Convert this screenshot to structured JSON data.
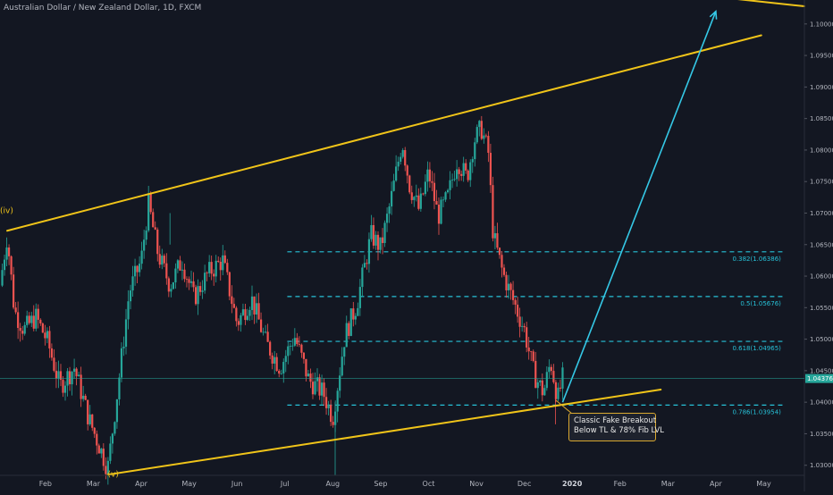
{
  "header": {
    "title": "Australian Dollar / New Zealand Dollar, 1D, FXCM"
  },
  "colors": {
    "background": "#131722",
    "up_candle": "#26a69a",
    "down_candle": "#ef5350",
    "trendline": "#f0c419",
    "fib_line": "#27c2d8",
    "arrow": "#35c8e6",
    "price_line": "#26a69a"
  },
  "chart_data": {
    "type": "candlestick",
    "title": "Australian Dollar / New Zealand Dollar, 1D, FXCM",
    "x_axis": {
      "ticks": [
        {
          "label": "Feb",
          "month": 1
        },
        {
          "label": "Mar",
          "month": 2
        },
        {
          "label": "Apr",
          "month": 3
        },
        {
          "label": "May",
          "month": 4
        },
        {
          "label": "Jun",
          "month": 5
        },
        {
          "label": "Jul",
          "month": 6
        },
        {
          "label": "Aug",
          "month": 7
        },
        {
          "label": "Sep",
          "month": 8
        },
        {
          "label": "Oct",
          "month": 9
        },
        {
          "label": "Nov",
          "month": 10
        },
        {
          "label": "Dec",
          "month": 11
        },
        {
          "label": "2020",
          "month": 12,
          "bold": true
        },
        {
          "label": "Feb",
          "month": 13
        },
        {
          "label": "Mar",
          "month": 14
        },
        {
          "label": "Apr",
          "month": 15
        },
        {
          "label": "May",
          "month": 16
        }
      ],
      "range_months": [
        0.05,
        16.85
      ]
    },
    "y_axis": {
      "ticks": [
        "1.03000",
        "1.03500",
        "1.04000",
        "1.04500",
        "1.05000",
        "1.05500",
        "1.06000",
        "1.06500",
        "1.07000",
        "1.07500",
        "1.08000",
        "1.08500",
        "1.09000",
        "1.09500",
        "1.10000"
      ],
      "range": [
        1.0284,
        1.1038
      ]
    },
    "current_price": {
      "label": "1.04376",
      "value": 1.04376
    },
    "price_path": [
      {
        "m": 0.05,
        "p": 1.0585
      },
      {
        "m": 0.2,
        "p": 1.0665
      },
      {
        "m": 0.35,
        "p": 1.0545
      },
      {
        "m": 0.55,
        "p": 1.0515
      },
      {
        "m": 0.8,
        "p": 1.0535
      },
      {
        "m": 1.05,
        "p": 1.0495
      },
      {
        "m": 1.3,
        "p": 1.0425
      },
      {
        "m": 1.6,
        "p": 1.0455
      },
      {
        "m": 1.9,
        "p": 1.0375
      },
      {
        "m": 2.1,
        "p": 1.0335
      },
      {
        "m": 2.3,
        "p": 1.0295
      },
      {
        "m": 2.5,
        "p": 1.0415
      },
      {
        "m": 2.75,
        "p": 1.0575
      },
      {
        "m": 3.0,
        "p": 1.0625
      },
      {
        "m": 3.15,
        "p": 1.0715
      },
      {
        "m": 3.35,
        "p": 1.0635
      },
      {
        "m": 3.6,
        "p": 1.0585
      },
      {
        "m": 3.85,
        "p": 1.0625
      },
      {
        "m": 4.1,
        "p": 1.0565
      },
      {
        "m": 4.4,
        "p": 1.0605
      },
      {
        "m": 4.7,
        "p": 1.0625
      },
      {
        "m": 5.0,
        "p": 1.0525
      },
      {
        "m": 5.3,
        "p": 1.0565
      },
      {
        "m": 5.6,
        "p": 1.0495
      },
      {
        "m": 5.9,
        "p": 1.0455
      },
      {
        "m": 6.2,
        "p": 1.0505
      },
      {
        "m": 6.5,
        "p": 1.0435
      },
      {
        "m": 6.8,
        "p": 1.0415
      },
      {
        "m": 7.0,
        "p": 1.0375
      },
      {
        "m": 7.25,
        "p": 1.0505
      },
      {
        "m": 7.5,
        "p": 1.0555
      },
      {
        "m": 7.8,
        "p": 1.0665
      },
      {
        "m": 8.0,
        "p": 1.0645
      },
      {
        "m": 8.2,
        "p": 1.0715
      },
      {
        "m": 8.45,
        "p": 1.0815
      },
      {
        "m": 8.6,
        "p": 1.0745
      },
      {
        "m": 8.8,
        "p": 1.0705
      },
      {
        "m": 9.0,
        "p": 1.0765
      },
      {
        "m": 9.2,
        "p": 1.0695
      },
      {
        "m": 9.4,
        "p": 1.0725
      },
      {
        "m": 9.6,
        "p": 1.0785
      },
      {
        "m": 9.8,
        "p": 1.0755
      },
      {
        "m": 9.95,
        "p": 1.0815
      },
      {
        "m": 10.1,
        "p": 1.0835
      },
      {
        "m": 10.25,
        "p": 1.0795
      },
      {
        "m": 10.35,
        "p": 1.0665
      },
      {
        "m": 10.55,
        "p": 1.0605
      },
      {
        "m": 10.75,
        "p": 1.0565
      },
      {
        "m": 11.0,
        "p": 1.0515
      },
      {
        "m": 11.2,
        "p": 1.0445
      },
      {
        "m": 11.4,
        "p": 1.0415
      },
      {
        "m": 11.55,
        "p": 1.0465
      },
      {
        "m": 11.7,
        "p": 1.0405
      },
      {
        "m": 11.8,
        "p": 1.0438
      }
    ],
    "trendlines": [
      {
        "name": "upper-channel",
        "from": {
          "m": 0.2,
          "p": 1.0672
        },
        "to": {
          "m": 15.95,
          "p": 1.0982
        }
      },
      {
        "name": "lower-channel",
        "from": {
          "m": 2.3,
          "p": 1.0285
        },
        "to": {
          "m": 13.85,
          "p": 1.042
        }
      },
      {
        "name": "upper-channel-top",
        "from": {
          "m": 14.4,
          "p": 1.1048
        },
        "to": {
          "m": 16.85,
          "p": 1.1028
        }
      }
    ],
    "arrow": {
      "from": {
        "m": 11.8,
        "p": 1.04
      },
      "to": {
        "m": 15.0,
        "p": 1.102
      }
    },
    "fib_levels": [
      {
        "label": "0.382(1.06386)",
        "value": 1.06386
      },
      {
        "label": "0.5(1.05676)",
        "value": 1.05676
      },
      {
        "label": "0.618(1.04965)",
        "value": 1.04965
      },
      {
        "label": "0.786(1.03954)",
        "value": 1.03954
      }
    ],
    "fib_range_months": [
      6.05,
      16.4
    ],
    "wave_labels": [
      {
        "label": "(iv)",
        "m": 0.05,
        "p": 1.07
      },
      {
        "label": "(v)",
        "m": 2.3,
        "p": 1.0282
      }
    ],
    "annotation": {
      "lines": [
        "Classic Fake Breakout",
        "Below TL & 78% Fib LVL"
      ]
    }
  }
}
